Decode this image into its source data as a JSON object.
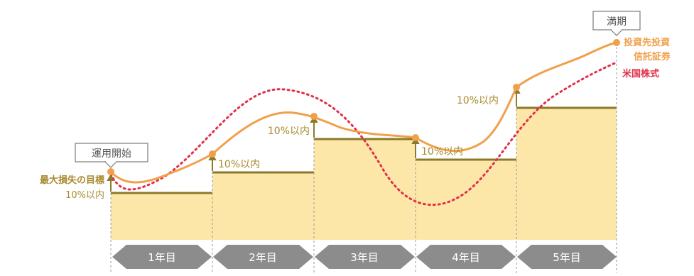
{
  "labels": {
    "start": "運用開始",
    "maturity": "満期",
    "max_loss_line1": "最大損失の目標",
    "max_loss_line2": "10%以内",
    "within_10": "10%以内"
  },
  "legend": {
    "fund_line1": "投資先投資",
    "fund_line2": "信託証券",
    "us_stocks": "米国株式"
  },
  "years": [
    "1年目",
    "2年目",
    "3年目",
    "4年目",
    "5年目"
  ],
  "colors": {
    "fund_line": "#f0a04a",
    "us_stocks_line": "#e0304a",
    "floor_fill": "#fde7a8",
    "floor_edge": "#8c7a2a",
    "label_brown": "#a88a2e",
    "arrow_bar": "#8c8c8c",
    "arrow_text": "#ffffff"
  }
}
